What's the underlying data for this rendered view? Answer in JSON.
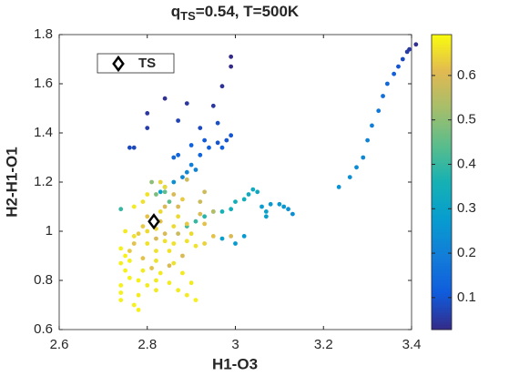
{
  "chart_data": {
    "type": "scatter",
    "title": {
      "base": "q",
      "sub": "TS",
      "rest": "=0.54, T=500K"
    },
    "xlabel": "H1-O3",
    "ylabel": "H2-H1-O1",
    "xlim": [
      2.6,
      3.4
    ],
    "xticks": [
      2.6,
      2.8,
      3,
      3.2,
      3.4
    ],
    "ylim": [
      0.6,
      1.8
    ],
    "yticks": [
      0.6,
      0.8,
      1,
      1.2,
      1.4,
      1.6,
      1.8
    ],
    "colormap": "parula",
    "clim": [
      0.028,
      0.692
    ],
    "cticks": [
      0.1,
      0.2,
      0.3,
      0.4,
      0.5,
      0.6
    ],
    "legend": "northwest",
    "ts": {
      "name": "TS",
      "x": 2.815,
      "y": 1.04,
      "color": "#000000"
    },
    "x": [
      3.235,
      3.26,
      3.275,
      3.29,
      3.3,
      3.31,
      3.325,
      3.335,
      3.345,
      3.36,
      3.37,
      3.38,
      3.39,
      3.395,
      3.41,
      2.77,
      2.76,
      2.8,
      2.8,
      2.84,
      2.87,
      2.89,
      2.95,
      2.97,
      2.99,
      2.99,
      2.92,
      2.96,
      2.98,
      2.96,
      2.93,
      2.9,
      2.87,
      2.86,
      2.92,
      2.94,
      2.97,
      2.99,
      2.88,
      2.89,
      2.91,
      2.86,
      2.84,
      2.83,
      2.9,
      2.89,
      2.91,
      2.93,
      2.95,
      2.97,
      2.99,
      3.0,
      3.02,
      3.03,
      3.04,
      3.05,
      3.06,
      3.08,
      3.1,
      3.11,
      3.12,
      3.13,
      3.07,
      3.07,
      3.0,
      3.02,
      2.97,
      2.84,
      2.81,
      2.82,
      2.85,
      2.74,
      2.8,
      2.83,
      2.84,
      2.87,
      2.89,
      2.86,
      2.79,
      2.78,
      2.77,
      2.76,
      2.79,
      2.81,
      2.85,
      2.88,
      2.82,
      2.84,
      2.92,
      2.93,
      2.95,
      2.87,
      2.74,
      2.75,
      2.74,
      2.75,
      2.76,
      2.74,
      2.74,
      2.74,
      2.77,
      2.78,
      2.78,
      2.8,
      2.82,
      2.85,
      2.87,
      2.89,
      2.91,
      2.82,
      2.79,
      2.82,
      2.85,
      2.82,
      2.86,
      2.8,
      2.77,
      2.75,
      2.79,
      2.8,
      2.77,
      2.83,
      2.86,
      2.87,
      2.84,
      2.88,
      2.9,
      2.89,
      2.9,
      2.91,
      2.93,
      2.92,
      2.86,
      2.83,
      2.78,
      2.76,
      2.8,
      2.82,
      2.95,
      2.93,
      2.99,
      2.84,
      2.83,
      2.89,
      2.88
    ],
    "y": [
      1.18,
      1.22,
      1.26,
      1.3,
      1.37,
      1.43,
      1.49,
      1.55,
      1.6,
      1.64,
      1.67,
      1.7,
      1.73,
      1.74,
      1.76,
      1.34,
      1.34,
      1.48,
      1.42,
      1.54,
      1.45,
      1.52,
      1.51,
      1.59,
      1.67,
      1.71,
      1.42,
      1.44,
      1.37,
      1.36,
      1.37,
      1.35,
      1.31,
      1.3,
      1.31,
      1.34,
      1.34,
      1.39,
      1.22,
      1.24,
      1.25,
      1.2,
      1.18,
      1.16,
      1.27,
      1.02,
      1.04,
      1.06,
      1.08,
      1.08,
      1.09,
      1.12,
      1.13,
      1.15,
      1.17,
      1.16,
      1.1,
      1.11,
      1.11,
      1.1,
      1.09,
      1.07,
      1.08,
      1.06,
      0.95,
      0.98,
      0.97,
      1.16,
      1.2,
      1.15,
      1.12,
      1.09,
      1.06,
      1.04,
      1.1,
      1.1,
      1.21,
      1.15,
      1.02,
      0.99,
      0.95,
      0.92,
      0.89,
      0.85,
      0.86,
      0.9,
      0.97,
      0.99,
      1.12,
      1.16,
      1.08,
      0.99,
      0.93,
      0.9,
      0.87,
      0.84,
      0.81,
      0.78,
      0.75,
      0.72,
      0.7,
      0.68,
      0.74,
      0.78,
      0.8,
      0.79,
      0.76,
      0.74,
      0.72,
      0.76,
      0.84,
      0.88,
      0.92,
      0.92,
      0.95,
      0.95,
      0.98,
      1.0,
      1.12,
      1.15,
      1.1,
      1.08,
      1.02,
      1.06,
      0.96,
      0.83,
      0.79,
      0.96,
      0.99,
      0.94,
      1.03,
      1.07,
      0.87,
      0.83,
      0.8,
      0.88,
      1.0,
      1.01,
      0.98,
      0.95,
      0.98,
      1.18,
      1.2,
      1.03,
      1.13
    ],
    "c": [
      0.25,
      0.24,
      0.23,
      0.22,
      0.21,
      0.2,
      0.18,
      0.16,
      0.14,
      0.12,
      0.1,
      0.08,
      0.06,
      0.05,
      0.04,
      0.08,
      0.08,
      0.05,
      0.06,
      0.04,
      0.07,
      0.05,
      0.05,
      0.04,
      0.03,
      0.03,
      0.08,
      0.09,
      0.1,
      0.1,
      0.11,
      0.12,
      0.13,
      0.14,
      0.13,
      0.12,
      0.12,
      0.1,
      0.22,
      0.22,
      0.21,
      0.24,
      0.27,
      0.3,
      0.2,
      0.42,
      0.4,
      0.38,
      0.37,
      0.36,
      0.35,
      0.35,
      0.34,
      0.33,
      0.33,
      0.32,
      0.28,
      0.27,
      0.26,
      0.26,
      0.25,
      0.24,
      0.3,
      0.29,
      0.27,
      0.27,
      0.29,
      0.45,
      0.5,
      0.48,
      0.45,
      0.4,
      0.62,
      0.62,
      0.6,
      0.6,
      0.58,
      0.6,
      0.63,
      0.63,
      0.62,
      0.63,
      0.62,
      0.62,
      0.6,
      0.6,
      0.6,
      0.6,
      0.58,
      0.58,
      0.55,
      0.58,
      0.68,
      0.68,
      0.68,
      0.68,
      0.68,
      0.68,
      0.68,
      0.68,
      0.68,
      0.68,
      0.67,
      0.67,
      0.67,
      0.67,
      0.67,
      0.67,
      0.68,
      0.67,
      0.67,
      0.66,
      0.66,
      0.66,
      0.66,
      0.66,
      0.66,
      0.67,
      0.66,
      0.66,
      0.67,
      0.65,
      0.65,
      0.65,
      0.66,
      0.67,
      0.67,
      0.66,
      0.65,
      0.66,
      0.62,
      0.6,
      0.66,
      0.67,
      0.68,
      0.68,
      0.65,
      0.64,
      0.62,
      0.64,
      0.6,
      0.65,
      0.64,
      0.63,
      0.63
    ]
  }
}
